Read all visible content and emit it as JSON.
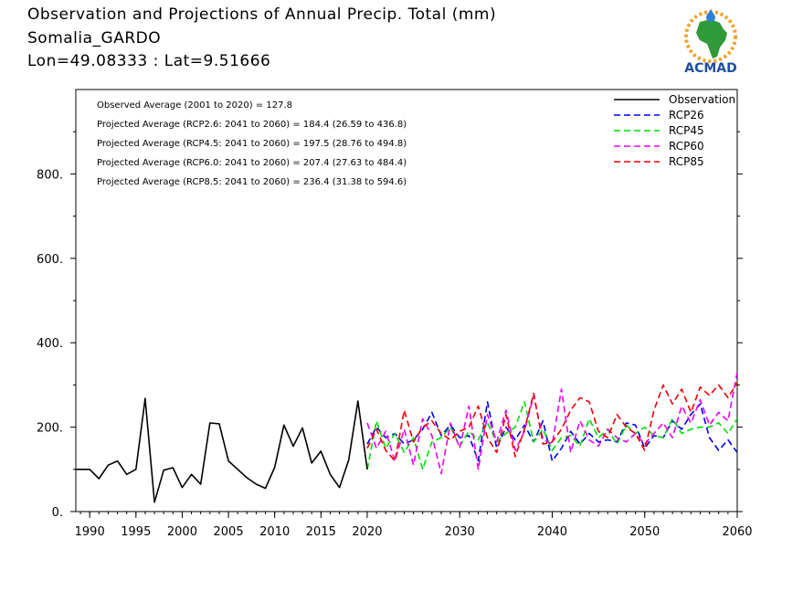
{
  "header": {
    "title": "Observation and Projections of Annual Precip. Total (mm)",
    "location": "Somalia_GARDO",
    "coords": "Lon=49.08333 : Lat=9.51666"
  },
  "logo": {
    "text": "ACMAD"
  },
  "colors": {
    "Observation": "#000000",
    "RCP26": "#0000ee",
    "RCP45": "#00dd00",
    "RCP60": "#ee00ee",
    "RCP85": "#ee0000"
  },
  "chart_data": {
    "type": "line",
    "xlim": [
      1988.5,
      2060
    ],
    "ylim": [
      0,
      1000
    ],
    "x_ticks": [
      {
        "value": 1990,
        "label": "1990"
      },
      {
        "value": 1995,
        "label": "1995"
      },
      {
        "value": 2000,
        "label": "2000"
      },
      {
        "value": 2005,
        "label": "2005"
      },
      {
        "value": 2010,
        "label": "2010"
      },
      {
        "value": 2015,
        "label": "2015"
      },
      {
        "value": 2020,
        "label": "2020"
      },
      {
        "value": 2030,
        "label": "2030"
      },
      {
        "value": 2040,
        "label": "2040"
      },
      {
        "value": 2050,
        "label": "2050"
      },
      {
        "value": 2060,
        "label": "2060"
      }
    ],
    "y_ticks": [
      {
        "value": 0,
        "label": "0."
      },
      {
        "value": 200,
        "label": "200."
      },
      {
        "value": 400,
        "label": "400."
      },
      {
        "value": 600,
        "label": "600."
      },
      {
        "value": 800,
        "label": "800."
      }
    ],
    "annotations": [
      "Observed Average (2001 to 2020) = 127.8",
      "Projected Average (RCP2.6: 2041 to 2060) = 184.4 (26.59 to 436.8)",
      "Projected Average (RCP4.5: 2041 to 2060) = 197.5 (28.76 to 494.8)",
      "Projected Average (RCP6.0: 2041 to 2060) = 207.4 (27.63 to 484.4)",
      "Projected Average (RCP8.5: 2041 to 2060) = 236.4 (31.38 to 594.6)"
    ],
    "legend": {
      "position": "top-right"
    },
    "series": [
      {
        "name": "Observation",
        "style": "solid",
        "x": [
          1988,
          1989,
          1990,
          1991,
          1992,
          1993,
          1994,
          1995,
          1996,
          1997,
          1998,
          1999,
          2000,
          2001,
          2002,
          2003,
          2004,
          2005,
          2006,
          2007,
          2008,
          2009,
          2010,
          2011,
          2012,
          2013,
          2014,
          2015,
          2016,
          2017,
          2018,
          2019,
          2020
        ],
        "values": [
          100,
          100,
          100,
          78,
          110,
          120,
          88,
          100,
          268,
          22,
          98,
          104,
          57,
          88,
          65,
          210,
          208,
          120,
          100,
          80,
          65,
          55,
          105,
          205,
          155,
          198,
          115,
          143,
          88,
          57,
          122,
          262,
          100
        ]
      },
      {
        "name": "RCP26",
        "style": "dashed",
        "x": [
          2020,
          2021,
          2022,
          2023,
          2024,
          2025,
          2026,
          2027,
          2028,
          2029,
          2030,
          2031,
          2032,
          2033,
          2034,
          2035,
          2036,
          2037,
          2038,
          2039,
          2040,
          2041,
          2042,
          2043,
          2044,
          2045,
          2046,
          2047,
          2048,
          2049,
          2050,
          2051,
          2052,
          2053,
          2054,
          2055,
          2056,
          2057,
          2058,
          2059,
          2060
        ],
        "values": [
          160,
          200,
          175,
          185,
          160,
          170,
          195,
          235,
          180,
          205,
          175,
          180,
          120,
          260,
          150,
          200,
          170,
          205,
          165,
          215,
          120,
          150,
          190,
          160,
          185,
          165,
          170,
          165,
          210,
          205,
          150,
          180,
          175,
          215,
          195,
          230,
          255,
          175,
          145,
          170,
          140
        ]
      },
      {
        "name": "RCP45",
        "style": "dashed",
        "x": [
          2020,
          2021,
          2022,
          2023,
          2024,
          2025,
          2026,
          2027,
          2028,
          2029,
          2030,
          2031,
          2032,
          2033,
          2034,
          2035,
          2036,
          2037,
          2038,
          2039,
          2040,
          2041,
          2042,
          2043,
          2044,
          2045,
          2046,
          2047,
          2048,
          2049,
          2050,
          2051,
          2052,
          2053,
          2054,
          2055,
          2056,
          2057,
          2058,
          2059,
          2060
        ],
        "values": [
          100,
          215,
          150,
          185,
          140,
          175,
          100,
          165,
          175,
          200,
          155,
          190,
          170,
          210,
          165,
          185,
          200,
          260,
          165,
          195,
          145,
          175,
          180,
          155,
          220,
          175,
          195,
          160,
          205,
          185,
          200,
          180,
          175,
          220,
          185,
          195,
          200,
          200,
          210,
          185,
          220
        ]
      },
      {
        "name": "RCP60",
        "style": "dashed",
        "x": [
          2020,
          2021,
          2022,
          2023,
          2024,
          2025,
          2026,
          2027,
          2028,
          2029,
          2030,
          2031,
          2032,
          2033,
          2034,
          2035,
          2036,
          2037,
          2038,
          2039,
          2040,
          2041,
          2042,
          2043,
          2044,
          2045,
          2046,
          2047,
          2048,
          2049,
          2050,
          2051,
          2052,
          2053,
          2054,
          2055,
          2056,
          2057,
          2058,
          2059,
          2060
        ],
        "values": [
          210,
          150,
          190,
          120,
          195,
          110,
          220,
          180,
          90,
          210,
          150,
          250,
          100,
          230,
          165,
          240,
          145,
          190,
          275,
          170,
          160,
          290,
          140,
          215,
          170,
          155,
          195,
          175,
          165,
          185,
          160,
          185,
          210,
          175,
          250,
          210,
          265,
          205,
          235,
          215,
          330
        ]
      },
      {
        "name": "RCP85",
        "style": "dashed",
        "x": [
          2020,
          2021,
          2022,
          2023,
          2024,
          2025,
          2026,
          2027,
          2028,
          2029,
          2030,
          2031,
          2032,
          2033,
          2034,
          2035,
          2036,
          2037,
          2038,
          2039,
          2040,
          2041,
          2042,
          2043,
          2044,
          2045,
          2046,
          2047,
          2048,
          2049,
          2050,
          2051,
          2052,
          2053,
          2054,
          2055,
          2056,
          2057,
          2058,
          2059,
          2060
        ],
        "values": [
          150,
          195,
          145,
          120,
          240,
          165,
          200,
          215,
          185,
          170,
          190,
          200,
          250,
          175,
          140,
          230,
          130,
          195,
          280,
          160,
          165,
          195,
          240,
          270,
          260,
          190,
          175,
          230,
          200,
          185,
          145,
          240,
          300,
          255,
          290,
          235,
          295,
          275,
          300,
          270,
          305
        ]
      }
    ]
  }
}
